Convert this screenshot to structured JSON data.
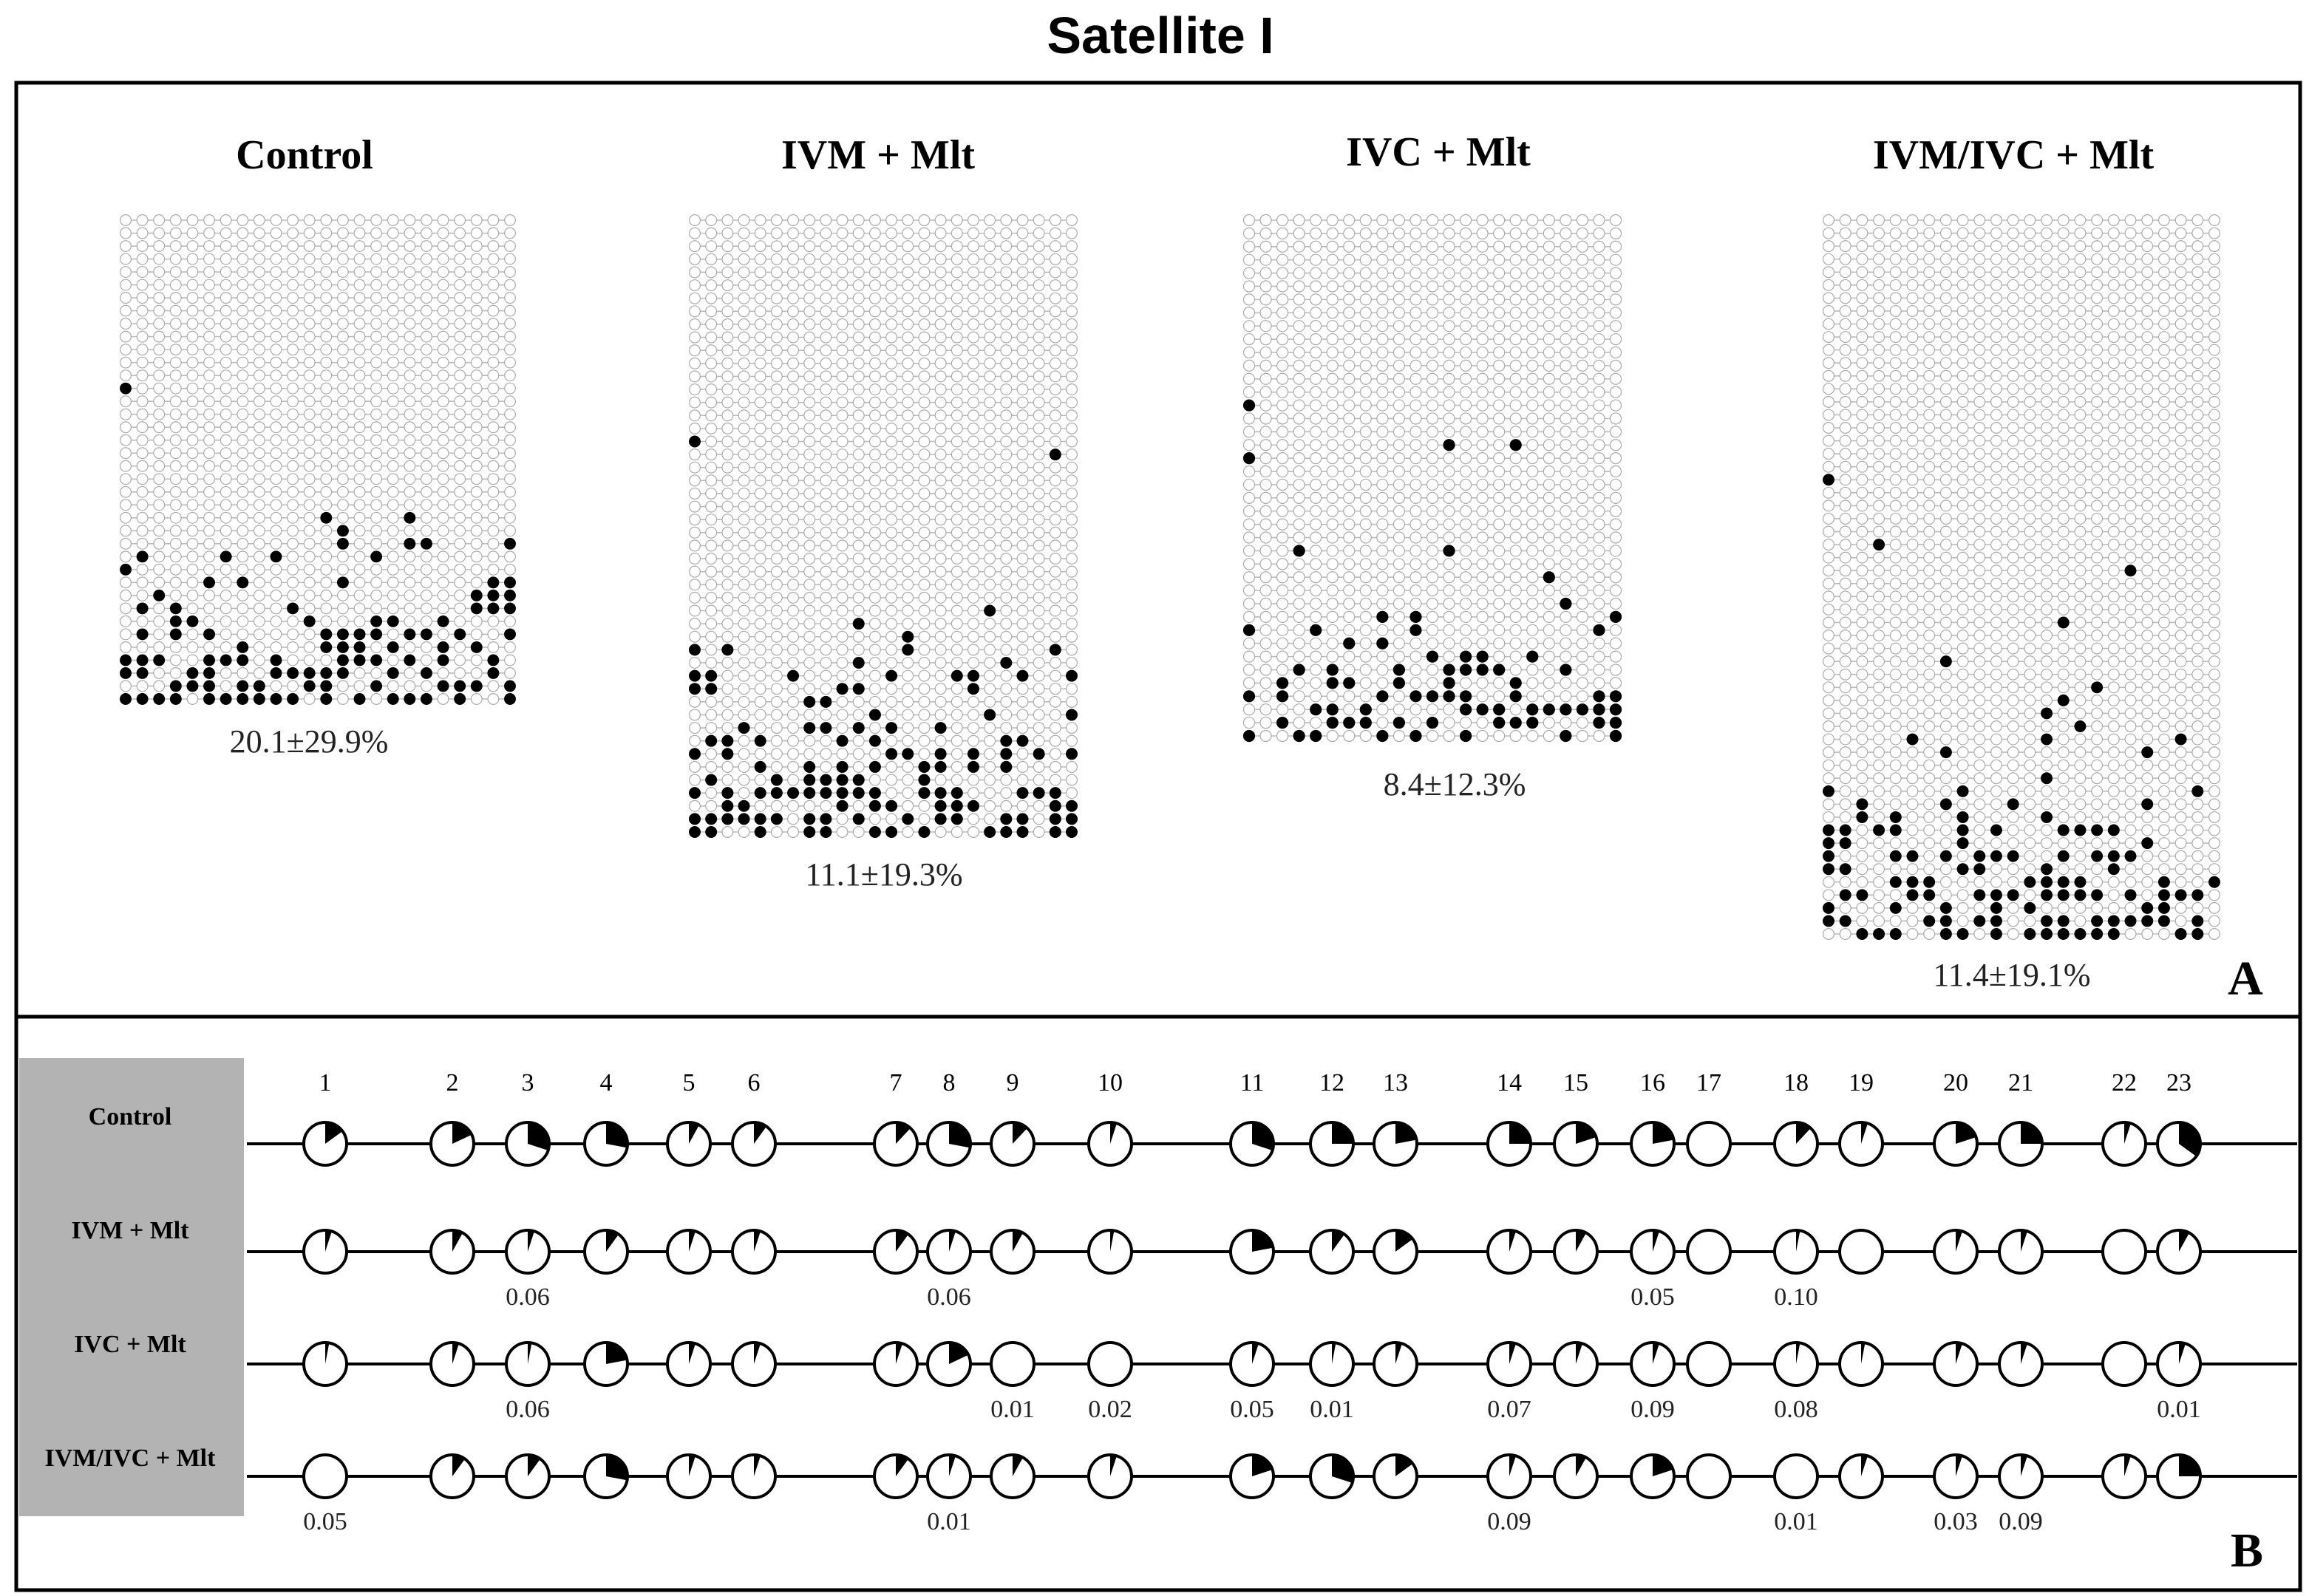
{
  "figure": {
    "title": "Satellite I",
    "panel_a_letter": "A",
    "panel_b_letter": "B"
  },
  "panel_a": {
    "groups": [
      {
        "name": "Control",
        "stat": "20.1±29.9%",
        "rows": 38,
        "columns": 24
      },
      {
        "name": "IVM + Mlt",
        "stat": "11.1±19.3%",
        "rows": 48,
        "columns": 24
      },
      {
        "name": "IVC + Mlt",
        "stat": "8.4±12.3%",
        "rows": 40,
        "columns": 23
      },
      {
        "name": "IVM/IVC + Mlt",
        "stat": "11.4±19.1%",
        "rows": 56,
        "columns": 24
      }
    ]
  },
  "panel_b": {
    "row_labels": [
      "Control",
      "IVM + Mlt",
      "IVC + Mlt",
      "IVM/IVC + Mlt"
    ],
    "site_numbers": [
      "1",
      "2",
      "3",
      "4",
      "5",
      "6",
      "7",
      "8",
      "9",
      "10",
      "11",
      "12",
      "13",
      "14",
      "15",
      "16",
      "17",
      "18",
      "19",
      "20",
      "21",
      "22",
      "23"
    ],
    "methylation_fractions": [
      [
        0.15,
        0.18,
        0.3,
        0.28,
        0.08,
        0.1,
        0.12,
        0.28,
        0.12,
        0.05,
        0.3,
        0.25,
        0.22,
        0.25,
        0.2,
        0.22,
        0.0,
        0.12,
        0.05,
        0.2,
        0.25,
        0.05,
        0.35
      ],
      [
        0.05,
        0.08,
        0.05,
        0.1,
        0.05,
        0.05,
        0.1,
        0.05,
        0.08,
        0.03,
        0.22,
        0.1,
        0.15,
        0.05,
        0.08,
        0.05,
        0.0,
        0.03,
        0.0,
        0.05,
        0.05,
        0.0,
        0.08
      ],
      [
        0.03,
        0.05,
        0.03,
        0.22,
        0.05,
        0.05,
        0.05,
        0.18,
        0.0,
        0.0,
        0.05,
        0.03,
        0.05,
        0.05,
        0.05,
        0.05,
        0.0,
        0.03,
        0.03,
        0.05,
        0.05,
        0.0,
        0.05
      ],
      [
        0.0,
        0.1,
        0.1,
        0.28,
        0.05,
        0.05,
        0.1,
        0.05,
        0.08,
        0.05,
        0.2,
        0.3,
        0.15,
        0.05,
        0.08,
        0.2,
        0.0,
        0.0,
        0.05,
        0.05,
        0.05,
        0.05,
        0.25
      ]
    ],
    "pvalues": {
      "IVM + Mlt": {
        "3": "0.06",
        "8": "0.06",
        "16": "0.05",
        "18": "0.10"
      },
      "IVC + Mlt": {
        "3": "0.06",
        "9": "0.01",
        "10": "0.02",
        "11": "0.05",
        "12": "0.01",
        "14": "0.07",
        "16": "0.09",
        "18": "0.08",
        "23": "0.01"
      },
      "IVM/IVC + Mlt": {
        "1": "0.05",
        "8": "0.01",
        "14": "0.09",
        "18": "0.01",
        "20": "0.03",
        "21": "0.09"
      }
    }
  }
}
